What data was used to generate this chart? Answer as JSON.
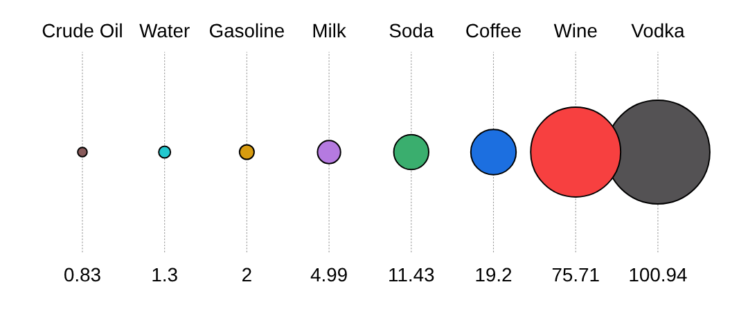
{
  "chart_data": {
    "type": "other",
    "categories": [
      "Crude Oil",
      "Water",
      "Gasoline",
      "Milk",
      "Soda",
      "Coffee",
      "Wine",
      "Vodka"
    ],
    "values": [
      0.83,
      1.3,
      2,
      4.99,
      11.43,
      19.2,
      75.71,
      100.94
    ],
    "colors": [
      "#885a5a",
      "#22c8cf",
      "#d89c10",
      "#b57ae0",
      "#3aae6e",
      "#1c6fe0",
      "#f74040",
      "#545254"
    ],
    "data_labels": true
  }
}
